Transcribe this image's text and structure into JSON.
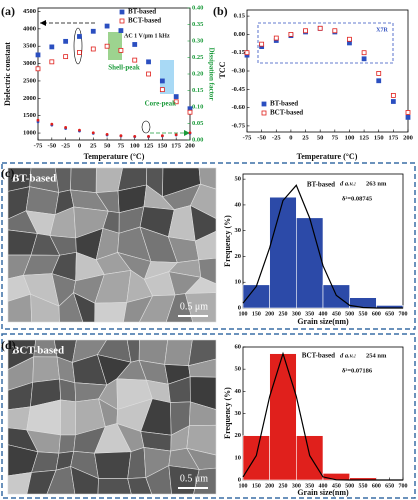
{
  "chart_data": [
    {
      "type": "line",
      "panel_label": "(a)",
      "x_label": "Temperature (°C)",
      "y_label": "Dielectric constant",
      "y2_label": "Dissipation factor",
      "annotations": [
        "AC 1 V/μm 1 kHz",
        "Shell-peak",
        "Core-peak"
      ],
      "x": [
        -75,
        -50,
        -25,
        0,
        25,
        50,
        75,
        100,
        125,
        150,
        175,
        200
      ],
      "series": [
        {
          "name": "BT-based",
          "color": "#2b4fc0",
          "values": [
            3250,
            3480,
            3640,
            3780,
            3930,
            4080,
            3950,
            3550,
            3050,
            2500,
            2050,
            1700
          ]
        },
        {
          "name": "BCT-based",
          "color": "#e0201c",
          "values": [
            2850,
            3050,
            3200,
            3320,
            3420,
            3500,
            3380,
            3100,
            2700,
            2250,
            1900,
            1600
          ]
        },
        {
          "color": "#2b4fc0",
          "axis": "y2",
          "values": [
            0.055,
            0.045,
            0.035,
            0.027,
            0.02,
            0.015,
            0.012,
            0.01,
            0.01,
            0.012,
            0.015,
            0.02
          ]
        },
        {
          "color": "#e0201c",
          "axis": "y2",
          "values": [
            0.06,
            0.048,
            0.038,
            0.03,
            0.022,
            0.017,
            0.013,
            0.011,
            0.011,
            0.013,
            0.016,
            0.022
          ]
        }
      ],
      "xlim": [
        -75,
        200
      ],
      "xticks": [
        -75,
        -50,
        -25,
        0,
        25,
        50,
        75,
        100,
        125,
        150,
        175,
        200
      ],
      "ylim": [
        800,
        4600
      ],
      "yticks": [
        1000,
        1500,
        2000,
        2500,
        3000,
        3500,
        4000,
        4500
      ],
      "y2lim": [
        0,
        0.4
      ],
      "y2ticks": [
        {
          "value": 0,
          "label": "0.00"
        },
        {
          "value": 0.05,
          "label": "0.05"
        },
        {
          "value": 0.1,
          "label": "0.10"
        },
        {
          "value": 0.15,
          "label": "0.15"
        },
        {
          "value": 0.2,
          "label": "0.20"
        },
        {
          "value": 0.25,
          "label": "0.25"
        },
        {
          "value": 0.3,
          "label": "0.30"
        },
        {
          "value": 0.35,
          "label": "0.35"
        },
        {
          "value": 0.4,
          "label": "0.40"
        }
      ],
      "y2_color": "#1a9a3a",
      "legend": "upper right"
    },
    {
      "type": "line",
      "panel_label": "(b)",
      "x_label": "Temperature (°C)",
      "y_label": "TCC",
      "annotations": [
        "X7R"
      ],
      "x": [
        -75,
        -50,
        -25,
        0,
        25,
        50,
        75,
        100,
        125,
        150,
        175,
        200
      ],
      "series": [
        {
          "name": "BT-based",
          "color": "#2b4fc0",
          "values": [
            -0.17,
            -0.1,
            -0.05,
            -0.01,
            0.02,
            0.05,
            0.02,
            -0.07,
            -0.2,
            -0.38,
            -0.55,
            -0.68
          ]
        },
        {
          "name": "BCT-based",
          "color": "#e0201c",
          "values": [
            -0.15,
            -0.08,
            -0.03,
            0.0,
            0.03,
            0.05,
            0.03,
            -0.04,
            -0.15,
            -0.32,
            -0.5,
            -0.64
          ]
        }
      ],
      "xlim": [
        -75,
        200
      ],
      "xticks": [
        -75,
        -50,
        -25,
        0,
        25,
        50,
        75,
        100,
        125,
        150,
        175,
        200
      ],
      "ylim": [
        -0.8,
        0.2
      ],
      "yticks": [
        {
          "value": 0.15,
          "label": "0.15"
        },
        {
          "value": 0,
          "label": "0.00"
        },
        {
          "value": -0.15,
          "label": "-0.15"
        },
        {
          "value": -0.3,
          "label": "-0.30"
        },
        {
          "value": -0.45,
          "label": "-0.45"
        },
        {
          "value": -0.6,
          "label": "-0.60"
        },
        {
          "value": -0.75,
          "label": "-0.75"
        }
      ],
      "legend": "lower left"
    },
    {
      "type": "histogram",
      "panel_label": "(c)",
      "image_label": "BT-based",
      "scale_bar": "0.5 μm",
      "x_label": "Grain size(nm)",
      "y_label": "Frequency (%)",
      "annotations": [
        "BT-based",
        "d a.v.:",
        "263 nm",
        "δ²=0.08745"
      ],
      "bins": [
        100,
        200,
        300,
        400,
        500,
        600,
        700
      ],
      "values": [
        9,
        43,
        35,
        9,
        4,
        1
      ],
      "color": "#2c4aa8",
      "fit": {
        "x": [
          100,
          150,
          200,
          250,
          300,
          350,
          400,
          450,
          500,
          550,
          600,
          650,
          700
        ],
        "values": [
          1.9,
          8.4,
          23.4,
          41.7,
          47.6,
          34.9,
          16.4,
          4.9,
          1.0,
          0.2,
          0,
          0,
          0
        ],
        "color": "#000000"
      },
      "xlim": [
        100,
        700
      ],
      "xticks": [
        100,
        150,
        200,
        250,
        300,
        350,
        400,
        450,
        500,
        550,
        600,
        650,
        700
      ],
      "ylim": [
        0,
        52
      ],
      "yticks": [
        0,
        10,
        20,
        30,
        40,
        50
      ]
    },
    {
      "type": "histogram",
      "panel_label": "(d)",
      "image_label": "BCT-based",
      "scale_bar": "0.5 μm",
      "x_label": "Grain size(nm)",
      "y_label": "Frequency (%)",
      "annotations": [
        "BCT-based",
        "d a.v.:",
        "254 nm",
        "δ²=0.07186"
      ],
      "bins": [
        100,
        200,
        300,
        400,
        500,
        600,
        700
      ],
      "values": [
        20,
        57,
        20,
        3,
        1,
        0
      ],
      "color": "#e0201c",
      "fit": {
        "x": [
          100,
          150,
          200,
          250,
          300,
          350,
          400,
          450,
          500,
          550,
          600,
          650,
          700
        ],
        "values": [
          1.4,
          11,
          37.7,
          57,
          37.7,
          11,
          1.4,
          0.1,
          0,
          0,
          0,
          0,
          0
        ],
        "color": "#000000"
      },
      "xlim": [
        100,
        700
      ],
      "xticks": [
        100,
        150,
        200,
        250,
        300,
        350,
        400,
        450,
        500,
        550,
        600,
        650,
        700
      ],
      "ylim": [
        0,
        60
      ],
      "yticks": [
        0,
        10,
        20,
        30,
        40,
        50,
        60
      ]
    }
  ]
}
